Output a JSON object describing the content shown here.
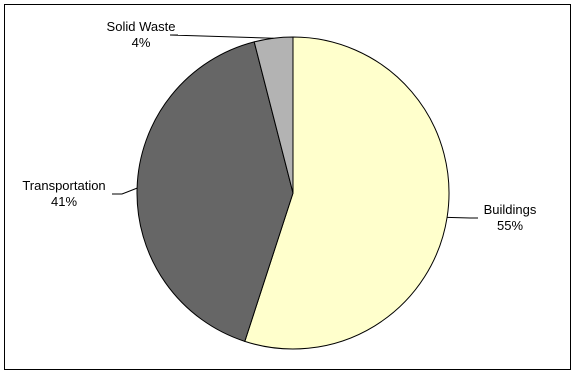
{
  "chart_data": {
    "type": "pie",
    "slices": [
      {
        "label": "Buildings",
        "value": 55,
        "value_label": "55%",
        "color": "#FFFFCC"
      },
      {
        "label": "Transportation",
        "value": 41,
        "value_label": "41%",
        "color": "#666666"
      },
      {
        "label": "Solid Waste",
        "value": 4,
        "value_label": "4%",
        "color": "#B3B3B3"
      }
    ],
    "start_angle": "12 o'clock",
    "direction": "clockwise",
    "legend": "none",
    "labels": "outside with leader lines"
  }
}
